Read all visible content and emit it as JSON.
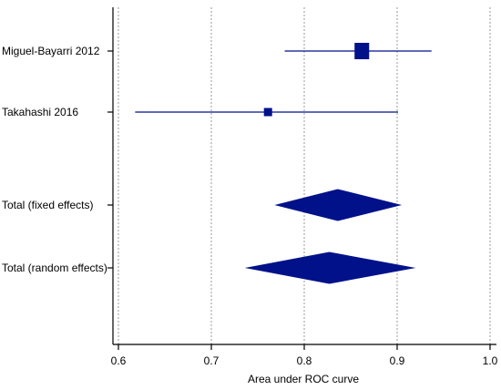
{
  "chart_data": {
    "type": "forest",
    "xlabel": "Area under ROC curve",
    "xlim": [
      0.6,
      1.0
    ],
    "xticks": [
      "0.6",
      "0.7",
      "0.8",
      "0.9",
      "1.0"
    ],
    "grid": true,
    "color": "#00118a",
    "studies": [
      {
        "label": "Miguel-Bayarri 2012",
        "estimate": 0.862,
        "lower": 0.779,
        "upper": 0.937,
        "marker": "square",
        "weight": "large"
      },
      {
        "label": "Takahashi 2016",
        "estimate": 0.761,
        "lower": 0.618,
        "upper": 0.901,
        "marker": "square",
        "weight": "small"
      }
    ],
    "pooled": [
      {
        "label": "Total (fixed effects)",
        "estimate": 0.836,
        "lower": 0.768,
        "upper": 0.905,
        "marker": "diamond"
      },
      {
        "label": "Total (random effects)",
        "estimate": 0.827,
        "lower": 0.736,
        "upper": 0.92,
        "marker": "diamond"
      }
    ]
  }
}
